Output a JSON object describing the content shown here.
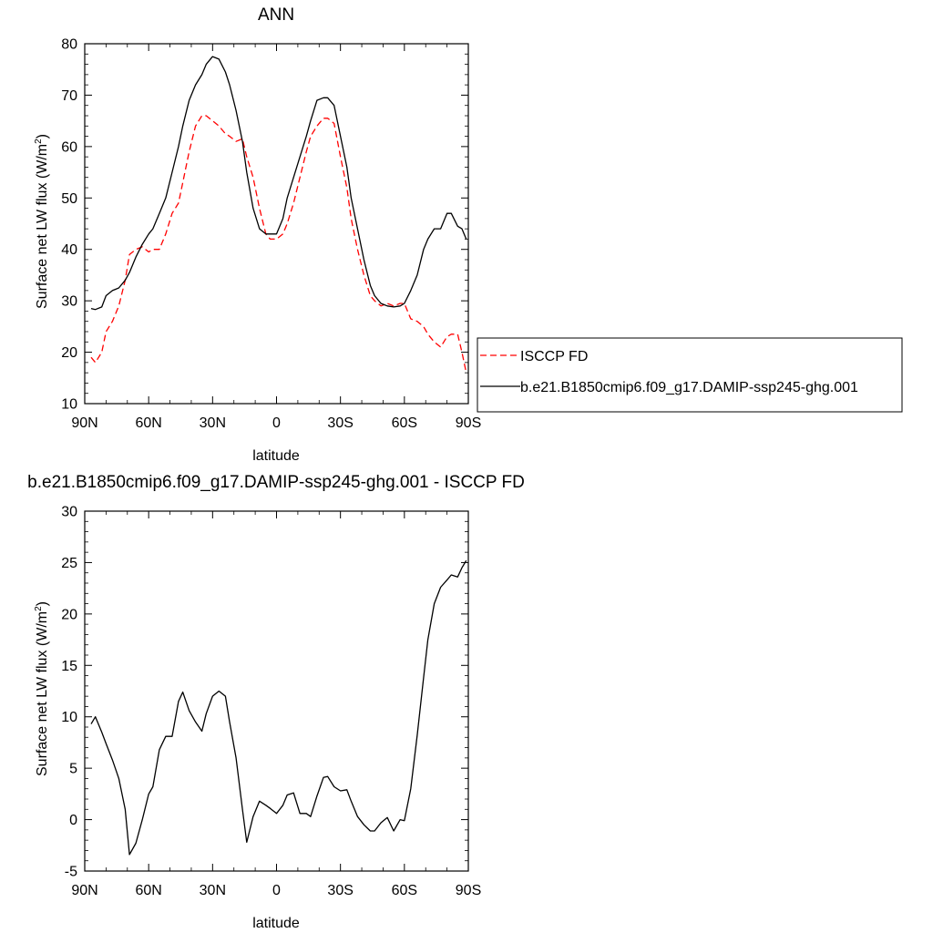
{
  "chart_data": [
    {
      "type": "line",
      "title": "ANN",
      "xlabel": "latitude",
      "ylabel": "Surface net LW flux (W/m",
      "ylabel_sup": "2",
      "ylabel_tail": ")",
      "xlim": [
        90,
        -90
      ],
      "ylim": [
        10,
        80
      ],
      "x_ticks": [
        90,
        60,
        30,
        0,
        -30,
        -60,
        -90
      ],
      "x_tick_labels": [
        "90N",
        "60N",
        "30N",
        "0",
        "30S",
        "60S",
        "90S"
      ],
      "y_ticks": [
        10,
        20,
        30,
        40,
        50,
        60,
        70,
        80
      ],
      "y_tick_labels": [
        "10",
        "20",
        "30",
        "40",
        "50",
        "60",
        "70",
        "80"
      ],
      "legend_position": "right",
      "series": [
        {
          "name": "ISCCP FD",
          "color": "#ff0000",
          "dash": "dashed",
          "x": [
            87,
            85,
            82,
            80,
            77,
            74,
            71,
            69,
            66,
            63,
            60,
            58,
            55,
            52,
            49,
            46,
            44,
            41,
            38,
            35,
            33,
            30,
            27,
            24,
            22,
            19,
            16,
            14,
            11,
            8,
            5,
            3,
            0,
            -3,
            -5,
            -8,
            -11,
            -14,
            -16,
            -19,
            -22,
            -24,
            -27,
            -30,
            -33,
            -35,
            -38,
            -41,
            -44,
            -46,
            -49,
            -52,
            -55,
            -58,
            -60,
            -63,
            -66,
            -69,
            -71,
            -74,
            -77,
            -80,
            -82,
            -85,
            -87,
            -89
          ],
          "y": [
            19,
            18,
            20,
            24,
            26,
            29,
            34,
            39,
            40,
            40.5,
            39.5,
            40,
            40,
            43,
            47,
            49,
            53,
            59,
            64,
            66,
            66,
            65,
            64,
            62.5,
            62,
            61,
            61.5,
            58,
            54,
            48,
            43,
            42,
            42,
            43,
            45,
            49,
            54,
            59,
            62,
            64,
            65.5,
            65.5,
            64.5,
            58,
            52,
            46,
            40,
            35,
            31,
            30,
            29,
            29.5,
            29,
            29.5,
            29.5,
            26.5,
            26,
            25,
            23.5,
            22,
            21,
            23,
            23.5,
            23.5,
            20,
            16
          ]
        },
        {
          "name": "b.e21.B1850cmip6.f09_g17.DAMIP-ssp245-ghg.001",
          "color": "#000000",
          "dash": "solid",
          "x": [
            87,
            85,
            82,
            80,
            77,
            74,
            71,
            69,
            66,
            63,
            60,
            58,
            55,
            52,
            49,
            46,
            44,
            41,
            38,
            35,
            33,
            30,
            27,
            24,
            22,
            19,
            16,
            14,
            11,
            8,
            5,
            3,
            0,
            -3,
            -5,
            -8,
            -11,
            -14,
            -16,
            -19,
            -22,
            -24,
            -27,
            -30,
            -33,
            -35,
            -38,
            -41,
            -44,
            -46,
            -49,
            -52,
            -55,
            -58,
            -60,
            -63,
            -66,
            -69,
            -71,
            -74,
            -77,
            -80,
            -82,
            -85,
            -87,
            -89
          ],
          "y": [
            28.5,
            28.3,
            28.8,
            31,
            32,
            32.5,
            34,
            35.5,
            38.5,
            41,
            43,
            44,
            47,
            50,
            55,
            60,
            64,
            69,
            72,
            74,
            76,
            77.5,
            77,
            74.5,
            72,
            67,
            61,
            55,
            48,
            44,
            43,
            43,
            43,
            46,
            50,
            54,
            58,
            62,
            65,
            69,
            69.5,
            69.5,
            68,
            62,
            56,
            50,
            44,
            38,
            33,
            31,
            29.5,
            29,
            28.8,
            29,
            29.5,
            32,
            35,
            40,
            42,
            44,
            44,
            47,
            47,
            44.5,
            44,
            42
          ]
        }
      ]
    },
    {
      "type": "line",
      "title": "b.e21.B1850cmip6.f09_g17.DAMIP-ssp245-ghg.001 - ISCCP FD",
      "xlabel": "latitude",
      "ylabel": "Surface net LW flux (W/m",
      "ylabel_sup": "2",
      "ylabel_tail": ")",
      "xlim": [
        90,
        -90
      ],
      "ylim": [
        -5,
        30
      ],
      "x_ticks": [
        90,
        60,
        30,
        0,
        -30,
        -60,
        -90
      ],
      "x_tick_labels": [
        "90N",
        "60N",
        "30N",
        "0",
        "30S",
        "60S",
        "90S"
      ],
      "y_ticks": [
        -5,
        0,
        5,
        10,
        15,
        20,
        25,
        30
      ],
      "y_tick_labels": [
        "-5",
        "0",
        "5",
        "10",
        "15",
        "20",
        "25",
        "30"
      ],
      "series": [
        {
          "color": "#000000",
          "dash": "solid",
          "x": [
            87,
            85,
            82,
            80,
            77,
            74,
            71,
            69,
            66,
            63,
            60,
            58,
            55,
            52,
            49,
            46,
            44,
            41,
            38,
            35,
            33,
            30,
            27,
            24,
            22,
            19,
            16,
            14,
            11,
            8,
            5,
            3,
            0,
            -3,
            -5,
            -8,
            -11,
            -14,
            -16,
            -19,
            -22,
            -24,
            -27,
            -30,
            -33,
            -35,
            -38,
            -41,
            -44,
            -46,
            -49,
            -52,
            -55,
            -58,
            -60,
            -63,
            -66,
            -69,
            -71,
            -74,
            -77,
            -80,
            -82,
            -85,
            -87,
            -89
          ],
          "y": [
            9.3,
            10,
            8.5,
            7.4,
            5.8,
            4,
            1,
            -3.4,
            -2.3,
            0,
            2.5,
            3.2,
            6.8,
            8.1,
            8.1,
            11.5,
            12.4,
            10.6,
            9.5,
            8.6,
            10.3,
            12,
            12.5,
            12,
            9.5,
            6,
            1,
            -2.2,
            0.3,
            1.8,
            1.4,
            1.1,
            0.6,
            1.4,
            2.4,
            2.6,
            0.6,
            0.6,
            0.3,
            2.3,
            4.1,
            4.2,
            3.2,
            2.8,
            2.9,
            1.8,
            0.3,
            -0.5,
            -1.1,
            -1.1,
            -0.3,
            0.2,
            -1.1,
            0,
            -0.1,
            3,
            8.2,
            13.8,
            17.5,
            21,
            22.6,
            23.3,
            23.8,
            23.6,
            24.5,
            25.2
          ]
        }
      ]
    }
  ]
}
